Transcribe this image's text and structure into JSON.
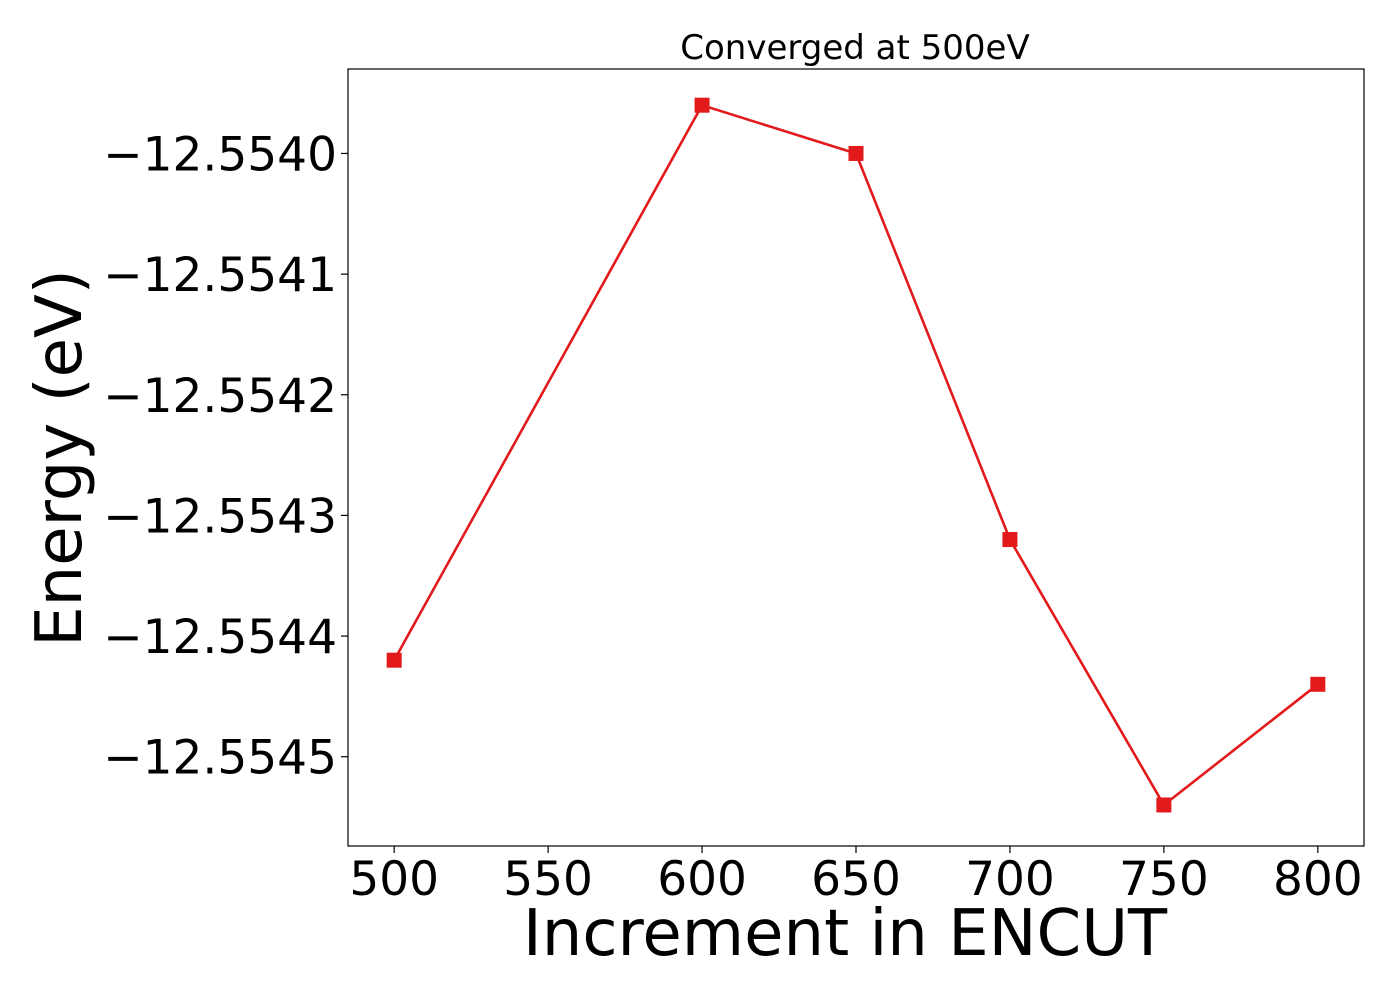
{
  "chart_data": {
    "type": "line",
    "title": "Converged at 500eV",
    "xlabel": "Increment in ENCUT",
    "ylabel": "Energy (eV)",
    "x": [
      500,
      600,
      650,
      700,
      750,
      800
    ],
    "series": [
      {
        "values": [
          -12.55442,
          -12.55396,
          -12.554,
          -12.55432,
          -12.55454,
          -12.55444
        ],
        "color": "#e31a1c",
        "marker": "square"
      }
    ],
    "xticks": [
      500,
      550,
      600,
      650,
      700,
      750,
      800
    ],
    "xtick_labels": [
      "500",
      "550",
      "600",
      "650",
      "700",
      "750",
      "800"
    ],
    "yticks": [
      -12.554,
      -12.5541,
      -12.5542,
      -12.5543,
      -12.5544,
      -12.5545
    ],
    "ytick_labels": [
      "−12.5540",
      "−12.5541",
      "−12.5542",
      "−12.5543",
      "−12.5544",
      "−12.5545"
    ],
    "xlim": [
      485,
      815
    ],
    "ylim": [
      -12.554574,
      -12.55393
    ],
    "grid": false,
    "legend": "none"
  }
}
